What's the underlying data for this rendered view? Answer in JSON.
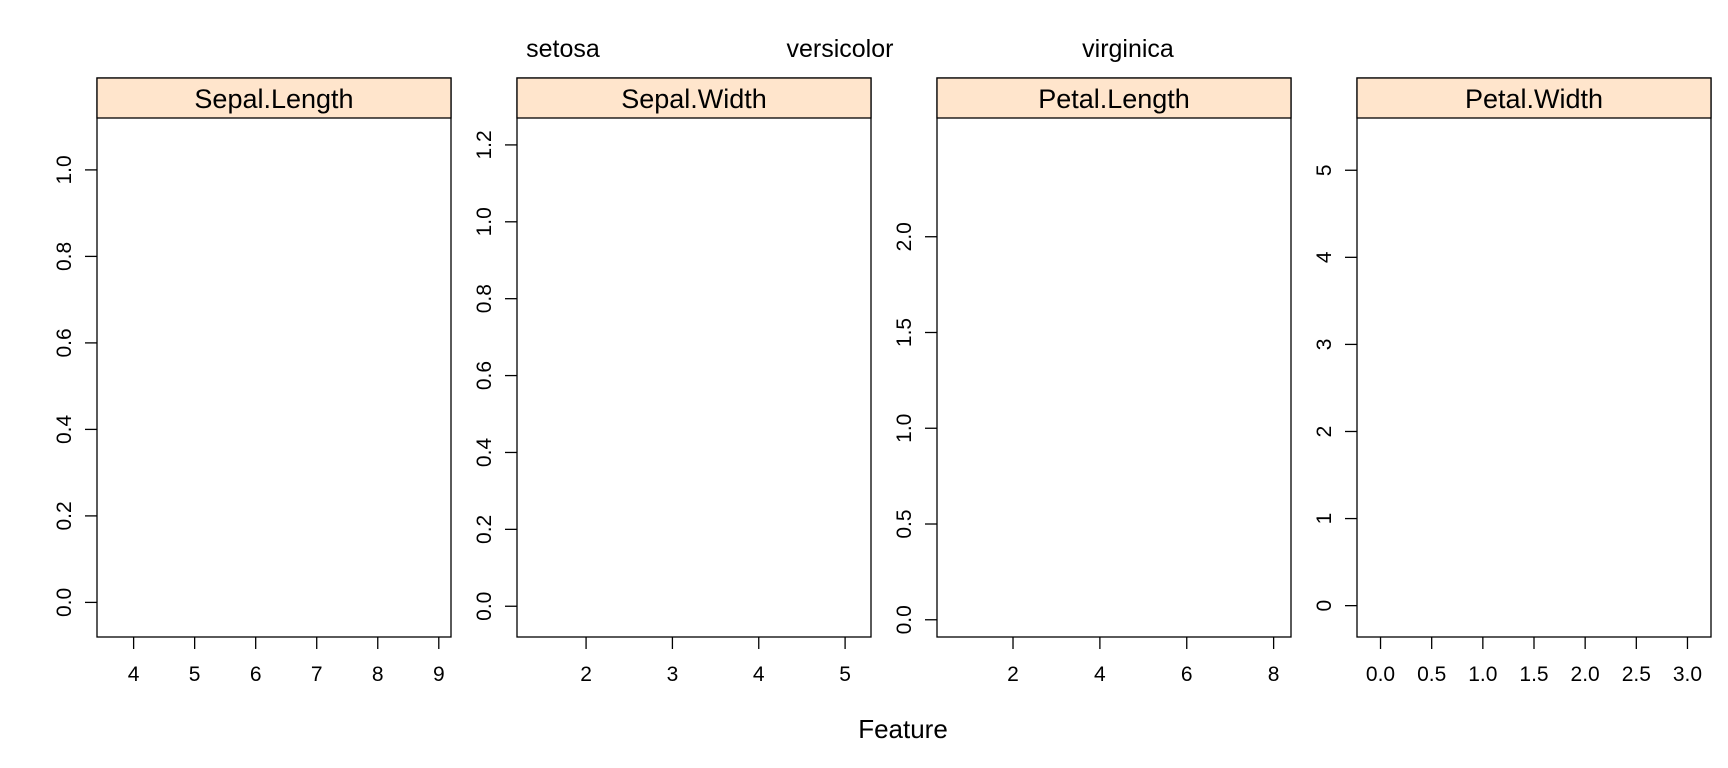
{
  "chart_data": {
    "type": "scatter",
    "layout": "trellis 4 panels in one row",
    "legend": {
      "placement": "top",
      "entries": [
        "setosa",
        "versicolor",
        "virginica"
      ]
    },
    "xlabel": "Feature",
    "ylabel": "",
    "grid": false,
    "strip_color": "#ffe5cc",
    "panels": [
      {
        "title": "Sepal.Length",
        "xlim": [
          3.4,
          9.2
        ],
        "ylim": [
          -0.08,
          1.12
        ],
        "xticks": [
          4,
          5,
          6,
          7,
          8,
          9
        ],
        "xtick_labels": [
          "4",
          "5",
          "6",
          "7",
          "8",
          "9"
        ],
        "yticks": [
          0.0,
          0.2,
          0.4,
          0.6,
          0.8,
          1.0
        ],
        "ytick_labels": [
          "0.0",
          "0.2",
          "0.4",
          "0.6",
          "0.8",
          "1.0"
        ],
        "series": []
      },
      {
        "title": "Sepal.Width",
        "xlim": [
          1.2,
          5.3
        ],
        "ylim": [
          -0.08,
          1.27
        ],
        "xticks": [
          2,
          3,
          4,
          5
        ],
        "xtick_labels": [
          "2",
          "3",
          "4",
          "5"
        ],
        "yticks": [
          0.0,
          0.2,
          0.4,
          0.6,
          0.8,
          1.0,
          1.2
        ],
        "ytick_labels": [
          "0.0",
          "0.2",
          "0.4",
          "0.6",
          "0.8",
          "1.0",
          "1.2"
        ],
        "series": []
      },
      {
        "title": "Petal.Length",
        "xlim": [
          0.25,
          8.4
        ],
        "ylim": [
          -0.09,
          2.62
        ],
        "xticks": [
          2,
          4,
          6,
          8
        ],
        "xtick_labels": [
          "2",
          "4",
          "6",
          "8"
        ],
        "yticks": [
          0.0,
          0.5,
          1.0,
          1.5,
          2.0
        ],
        "ytick_labels": [
          "0.0",
          "0.5",
          "1.0",
          "1.5",
          "2.0"
        ],
        "series": []
      },
      {
        "title": "Petal.Width",
        "xlim": [
          -0.23,
          3.23
        ],
        "ylim": [
          -0.36,
          5.6
        ],
        "xticks": [
          0.0,
          0.5,
          1.0,
          1.5,
          2.0,
          2.5,
          3.0
        ],
        "xtick_labels": [
          "0.0",
          "0.5",
          "1.0",
          "1.5",
          "2.0",
          "2.5",
          "3.0"
        ],
        "yticks": [
          0,
          1,
          2,
          3,
          4,
          5
        ],
        "ytick_labels": [
          "0",
          "1",
          "2",
          "3",
          "4",
          "5"
        ],
        "series": []
      }
    ]
  }
}
